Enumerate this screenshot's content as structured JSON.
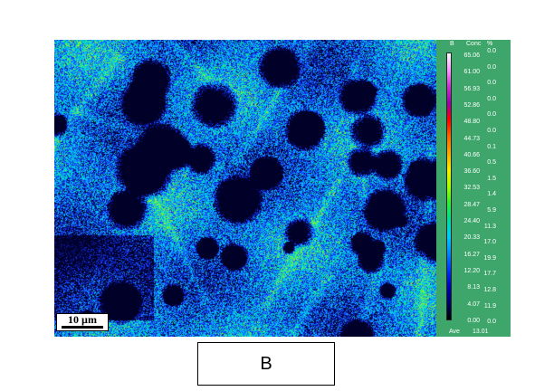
{
  "scale_bar": {
    "label": "10 µm"
  },
  "legend": {
    "element": "B",
    "conc_header": "Conc",
    "pct_header": "%",
    "conc_values": [
      "65.06",
      "61.00",
      "56.93",
      "52.86",
      "48.80",
      "44.73",
      "40.66",
      "36.60",
      "32.53",
      "28.47",
      "24.40",
      "20.33",
      "16.27",
      "12.20",
      "8.13",
      "4.07",
      "0.00"
    ],
    "pct_values": [
      "0.0",
      "0.0",
      "0.0",
      "0.0",
      "0.0",
      "0.0",
      "0.1",
      "0.5",
      "1.5",
      "1.4",
      "5.9",
      "11.3",
      "17.0",
      "19.9",
      "17.7",
      "12.8",
      "11.9",
      "0.0"
    ],
    "ave_label": "Ave",
    "ave_value": "13.01",
    "colors": [
      "#ffffff",
      "#ff99ff",
      "#cc33cc",
      "#9900aa",
      "#ff0000",
      "#ff6600",
      "#ffaa00",
      "#ffee00",
      "#aaff00",
      "#33ee33",
      "#00dd99",
      "#00ccff",
      "#0088ff",
      "#0033ff",
      "#0000bb",
      "#000066",
      "#000000"
    ]
  },
  "caption": {
    "text": "B"
  }
}
